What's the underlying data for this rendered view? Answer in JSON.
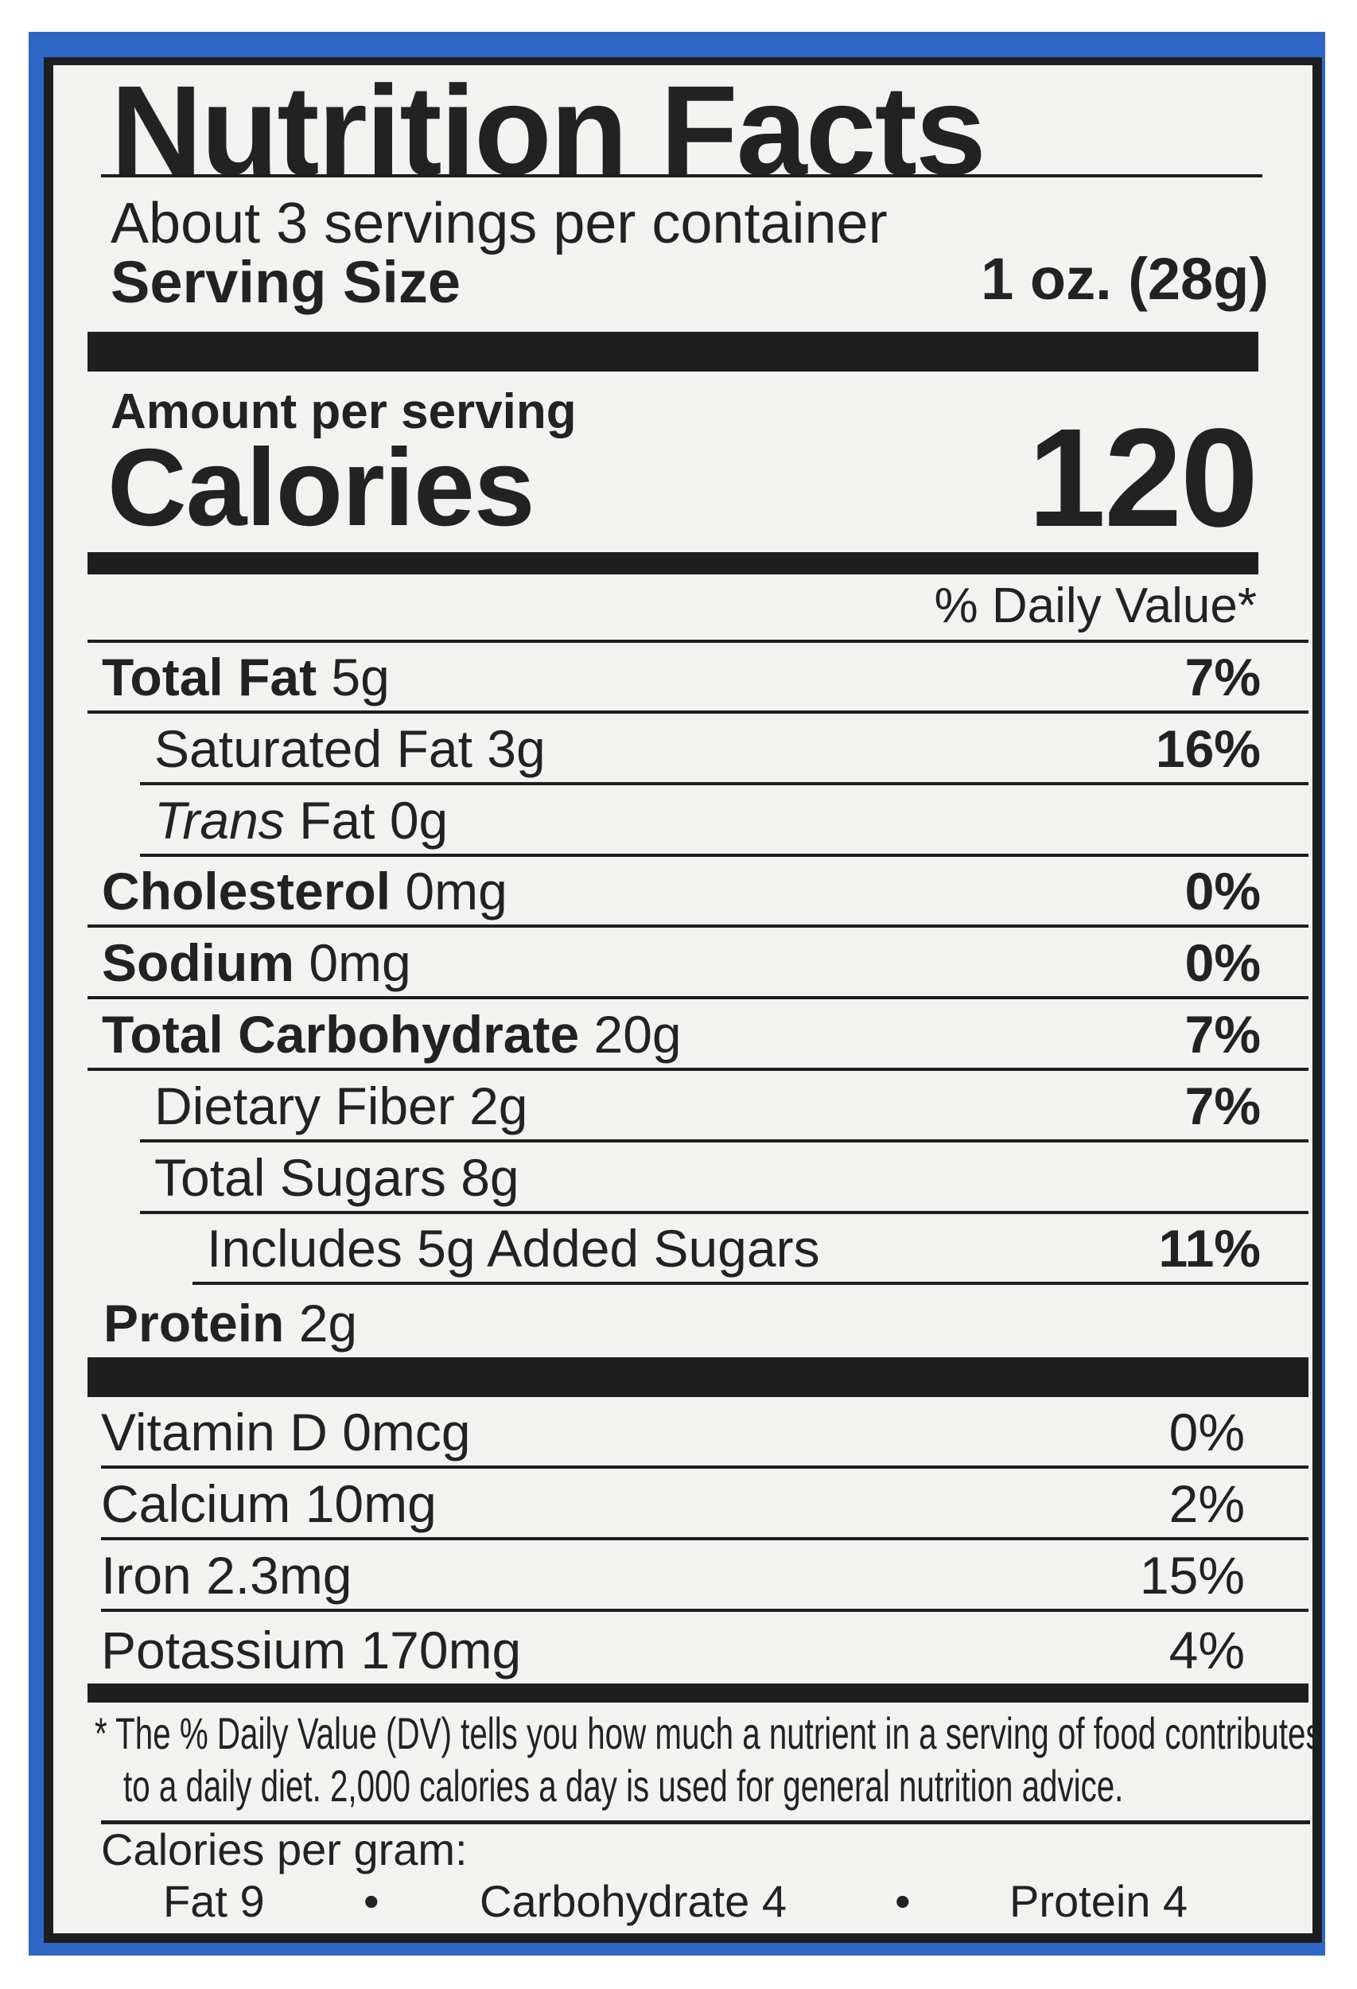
{
  "title": "Nutrition Facts",
  "servings_per_container": "About 3 servings per container",
  "serving_size_label": "Serving Size",
  "serving_size_value": "1 oz. (28g)",
  "amount_per_serving": "Amount per serving",
  "calories_label": "Calories",
  "calories_value": "120",
  "daily_value_header": "% Daily Value*",
  "nutrients": [
    {
      "bold": "Total Fat",
      "amount": " 5g",
      "dv": "7%"
    },
    {
      "bold": "",
      "italic": "",
      "amount": "Saturated Fat 3g",
      "dv": "16%"
    },
    {
      "bold": "",
      "italic": "Trans",
      "amount": " Fat 0g",
      "dv": ""
    },
    {
      "bold": "Cholesterol",
      "amount": " 0mg",
      "dv": "0%"
    },
    {
      "bold": "Sodium",
      "amount": " 0mg",
      "dv": "0%"
    },
    {
      "bold": "Total Carbohydrate",
      "amount": " 20g",
      "dv": "7%"
    },
    {
      "bold": "",
      "amount": "Dietary Fiber 2g",
      "dv": "7%"
    },
    {
      "bold": "",
      "amount": "Total Sugars 8g",
      "dv": ""
    },
    {
      "bold": "",
      "amount": "Includes 5g Added Sugars",
      "dv": "11%"
    },
    {
      "bold": "Protein",
      "amount": " 2g",
      "dv": ""
    }
  ],
  "vitamins": [
    {
      "name": "Vitamin D 0mcg",
      "dv": "0%"
    },
    {
      "name": "Calcium 10mg",
      "dv": "2%"
    },
    {
      "name": "Iron 2.3mg",
      "dv": "15%"
    },
    {
      "name": "Potassium 170mg",
      "dv": "4%"
    }
  ],
  "footnote_line1": "* The % Daily Value (DV) tells you how much a nutrient in a serving of food contributes",
  "footnote_line2": "to a daily diet. 2,000 calories a day is used for general nutrition advice.",
  "calories_per_gram": "Calories per gram:",
  "cpg_fat": "Fat 9",
  "cpg_carb": "Carbohydrate 4",
  "cpg_protein": "Protein 4",
  "separator": "•",
  "colors": {
    "background_blue": "#2f66c6",
    "panel": "#f2f2f0",
    "ink": "#1e1e1e"
  }
}
